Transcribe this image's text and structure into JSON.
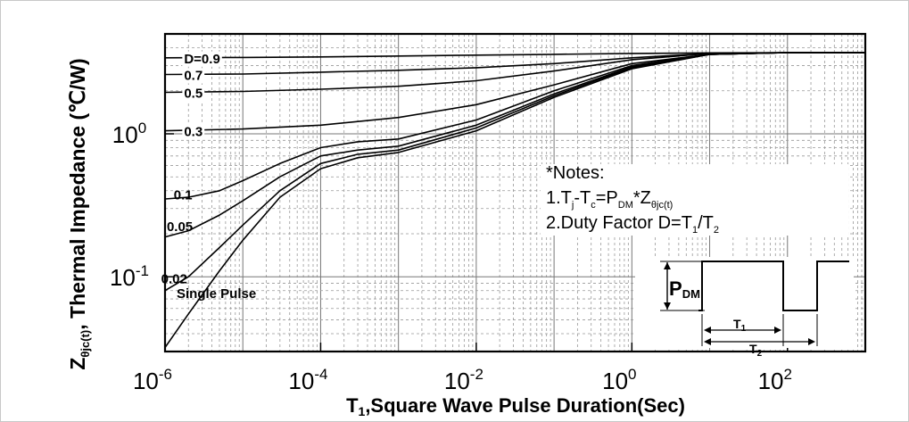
{
  "chart_data": {
    "type": "line",
    "x_scale": "log",
    "y_scale": "log",
    "xlim": [
      1e-06,
      1000
    ],
    "ylim": [
      0.03,
      5
    ],
    "grid": true,
    "xlabel": "T1,Square Wave Pulse Duration(Sec)",
    "xlabel_parts": {
      "a": "T",
      "sub": "1",
      "b": ",Square Wave Pulse Duration(Sec)"
    },
    "ylabel_parts": {
      "a": "Z",
      "sub": "θjc(t)",
      "b": ", Thermal Impedance (℃/W)"
    },
    "x_ticks": [
      {
        "base": "10",
        "exp": "-6",
        "value": 1e-06
      },
      {
        "base": "10",
        "exp": "-4",
        "value": 0.0001
      },
      {
        "base": "10",
        "exp": "-2",
        "value": 0.01
      },
      {
        "base": "10",
        "exp": "0",
        "value": 1
      },
      {
        "base": "10",
        "exp": "2",
        "value": 100
      }
    ],
    "y_ticks": [
      {
        "base": "10",
        "exp": "0",
        "value": 1
      },
      {
        "base": "10",
        "exp": "-1",
        "value": 0.1
      }
    ],
    "series": [
      {
        "name": "D=0.9",
        "x": [
          1e-06,
          1e-05,
          0.0001,
          0.001,
          0.01,
          0.1,
          1,
          10,
          100,
          1000
        ],
        "y": [
          3.4,
          3.42,
          3.45,
          3.5,
          3.55,
          3.6,
          3.65,
          3.68,
          3.7,
          3.7
        ]
      },
      {
        "name": "0.7",
        "x": [
          1e-06,
          1e-05,
          0.0001,
          0.001,
          0.01,
          0.1,
          1,
          10,
          100,
          1000
        ],
        "y": [
          2.6,
          2.62,
          2.7,
          2.78,
          2.9,
          3.1,
          3.4,
          3.65,
          3.7,
          3.7
        ]
      },
      {
        "name": "0.5",
        "x": [
          1e-06,
          1e-05,
          0.0001,
          0.001,
          0.01,
          0.1,
          1,
          10,
          100,
          1000
        ],
        "y": [
          1.95,
          1.98,
          2.05,
          2.15,
          2.35,
          2.75,
          3.3,
          3.65,
          3.7,
          3.7
        ]
      },
      {
        "name": "0.3",
        "x": [
          1e-06,
          1e-05,
          0.0001,
          0.001,
          0.01,
          0.1,
          1,
          10,
          100,
          1000
        ],
        "y": [
          1.05,
          1.08,
          1.15,
          1.3,
          1.6,
          2.2,
          3.1,
          3.6,
          3.7,
          3.7
        ]
      },
      {
        "name": "0.1",
        "x": [
          1e-06,
          2e-06,
          5e-06,
          1e-05,
          3e-05,
          0.0001,
          0.0003,
          0.001,
          0.01,
          0.1,
          1,
          10,
          100,
          1000
        ],
        "y": [
          0.35,
          0.36,
          0.4,
          0.47,
          0.62,
          0.8,
          0.88,
          0.92,
          1.25,
          2.0,
          3.0,
          3.6,
          3.7,
          3.7
        ]
      },
      {
        "name": "0.05",
        "x": [
          1e-06,
          2e-06,
          5e-06,
          1e-05,
          3e-05,
          0.0001,
          0.0003,
          0.001,
          0.01,
          0.1,
          1,
          10,
          100,
          1000
        ],
        "y": [
          0.19,
          0.21,
          0.27,
          0.34,
          0.5,
          0.7,
          0.77,
          0.82,
          1.15,
          1.9,
          2.95,
          3.6,
          3.7,
          3.7
        ]
      },
      {
        "name": "0.02",
        "x": [
          1e-06,
          2e-06,
          5e-06,
          1e-05,
          3e-05,
          0.0001,
          0.0003,
          0.001,
          0.01,
          0.1,
          1,
          10,
          100,
          1000
        ],
        "y": [
          0.08,
          0.1,
          0.16,
          0.23,
          0.4,
          0.62,
          0.72,
          0.77,
          1.1,
          1.85,
          2.9,
          3.6,
          3.7,
          3.7
        ]
      },
      {
        "name": "Single Pulse",
        "x": [
          1e-06,
          2e-06,
          5e-06,
          1e-05,
          3e-05,
          0.0001,
          0.0003,
          0.001,
          0.01,
          0.1,
          1,
          10,
          100,
          1000
        ],
        "y": [
          0.032,
          0.055,
          0.11,
          0.18,
          0.36,
          0.57,
          0.68,
          0.74,
          1.05,
          1.8,
          2.85,
          3.6,
          3.7,
          3.7
        ]
      }
    ],
    "notes": {
      "heading": "*Notes:",
      "line1": {
        "a": "1.T",
        "s1": "j",
        "b": "-T",
        "s2": "c",
        "c": "=P",
        "s3": "DM",
        "d": "*Z",
        "s4": "θjc(t)"
      },
      "line2": {
        "a": "2.Duty Factor D=T",
        "s1": "1",
        "b": "/T",
        "s2": "2"
      }
    },
    "inset": {
      "pdm_label": "P",
      "pdm_sub": "DM",
      "t1_label": "T",
      "t1_sub": "1",
      "t2_label": "T",
      "t2_sub": "2"
    }
  }
}
